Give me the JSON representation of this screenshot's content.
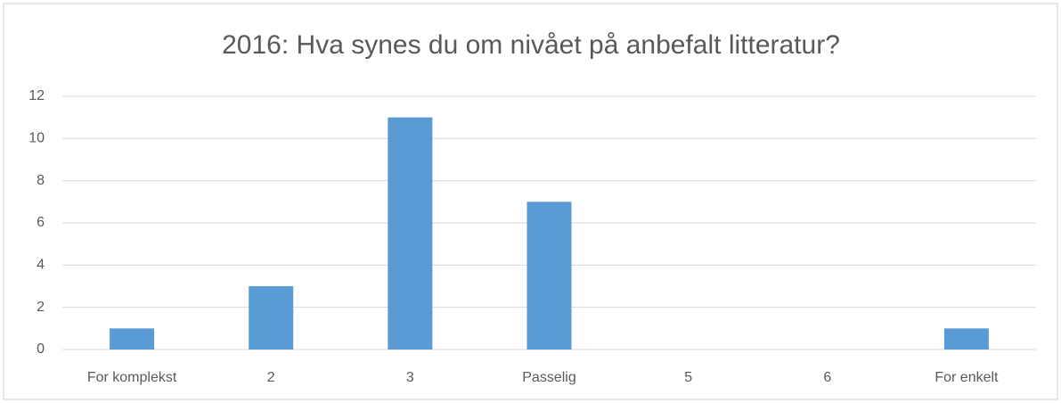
{
  "chart_data": {
    "type": "bar",
    "title": "2016: Hva synes du om nivået på anbefalt litteratur?",
    "categories": [
      "For komplekst",
      "2",
      "3",
      "Passelig",
      "5",
      "6",
      "For enkelt"
    ],
    "values": [
      1,
      3,
      11,
      7,
      0,
      0,
      1
    ],
    "color": "#5b9bd5",
    "ylim": [
      0,
      12
    ],
    "yticks": [
      0,
      2,
      4,
      6,
      8,
      10,
      12
    ],
    "grid": true
  }
}
